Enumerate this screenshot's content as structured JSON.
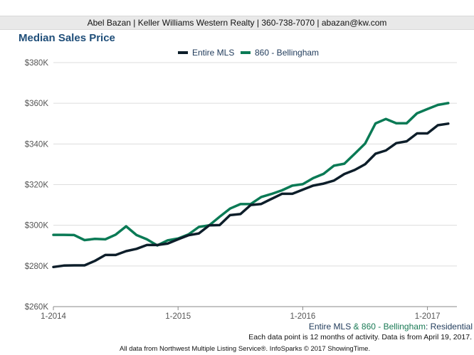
{
  "header": {
    "agent_line": "Abel Bazan | Keller Williams Western Realty | 360-738-7070 | abazan@kw.com"
  },
  "colors": {
    "series_1": "#0d1e2a",
    "series_2": "#0a7a55",
    "grid": "#dddddd",
    "axis": "#888888"
  },
  "footer": {
    "series_part1": "Entire MLS",
    "series_amp": " & ",
    "series_part2": "860 - Bellingham",
    "series_part3": ": Residential",
    "note": "Each data point is 12 months of activity. Data is from April 19, 2017.",
    "source": "All data from Northwest Multiple Listing Service®. InfoSparks © 2017 ShowingTime."
  },
  "chart_data": {
    "type": "line",
    "title": "Median Sales Price",
    "ylim": [
      260000,
      380000
    ],
    "yticks": [
      260000,
      280000,
      300000,
      320000,
      340000,
      360000,
      380000
    ],
    "ytick_labels": [
      "$260K",
      "$280K",
      "$300K",
      "$320K",
      "$340K",
      "$360K",
      "$380K"
    ],
    "xtick_labels": [
      "1-2014",
      "1-2015",
      "1-2016",
      "1-2017"
    ],
    "x": [
      "2014-01",
      "2014-02",
      "2014-03",
      "2014-04",
      "2014-05",
      "2014-06",
      "2014-07",
      "2014-08",
      "2014-09",
      "2014-10",
      "2014-11",
      "2014-12",
      "2015-01",
      "2015-02",
      "2015-03",
      "2015-04",
      "2015-05",
      "2015-06",
      "2015-07",
      "2015-08",
      "2015-09",
      "2015-10",
      "2015-11",
      "2015-12",
      "2016-01",
      "2016-02",
      "2016-03",
      "2016-04",
      "2016-05",
      "2016-06",
      "2016-07",
      "2016-08",
      "2016-09",
      "2016-10",
      "2016-11",
      "2016-12",
      "2017-01",
      "2017-02",
      "2017-03"
    ],
    "legend_position": "top",
    "grid": "horizontal",
    "series": [
      {
        "name": "Entire MLS",
        "values": [
          279500,
          280200,
          280300,
          280300,
          282500,
          285400,
          285400,
          287300,
          288400,
          290300,
          290300,
          291000,
          293100,
          295100,
          296000,
          300000,
          300100,
          305000,
          305500,
          310000,
          310500,
          313000,
          315500,
          315500,
          317500,
          319500,
          320500,
          322000,
          325200,
          327200,
          330000,
          335200,
          336800,
          340400,
          341300,
          345200,
          345200,
          349200,
          350000
        ]
      },
      {
        "name": "860 - Bellingham",
        "values": [
          295300,
          295300,
          295200,
          292700,
          293300,
          293100,
          295400,
          299500,
          295200,
          293100,
          290100,
          292600,
          293500,
          295500,
          299200,
          300000,
          304200,
          308200,
          310400,
          310500,
          313900,
          315400,
          317200,
          319500,
          320200,
          323200,
          325300,
          329300,
          330300,
          335200,
          340200,
          350100,
          352300,
          350200,
          350200,
          355100,
          357200,
          359200,
          360100
        ]
      }
    ]
  }
}
